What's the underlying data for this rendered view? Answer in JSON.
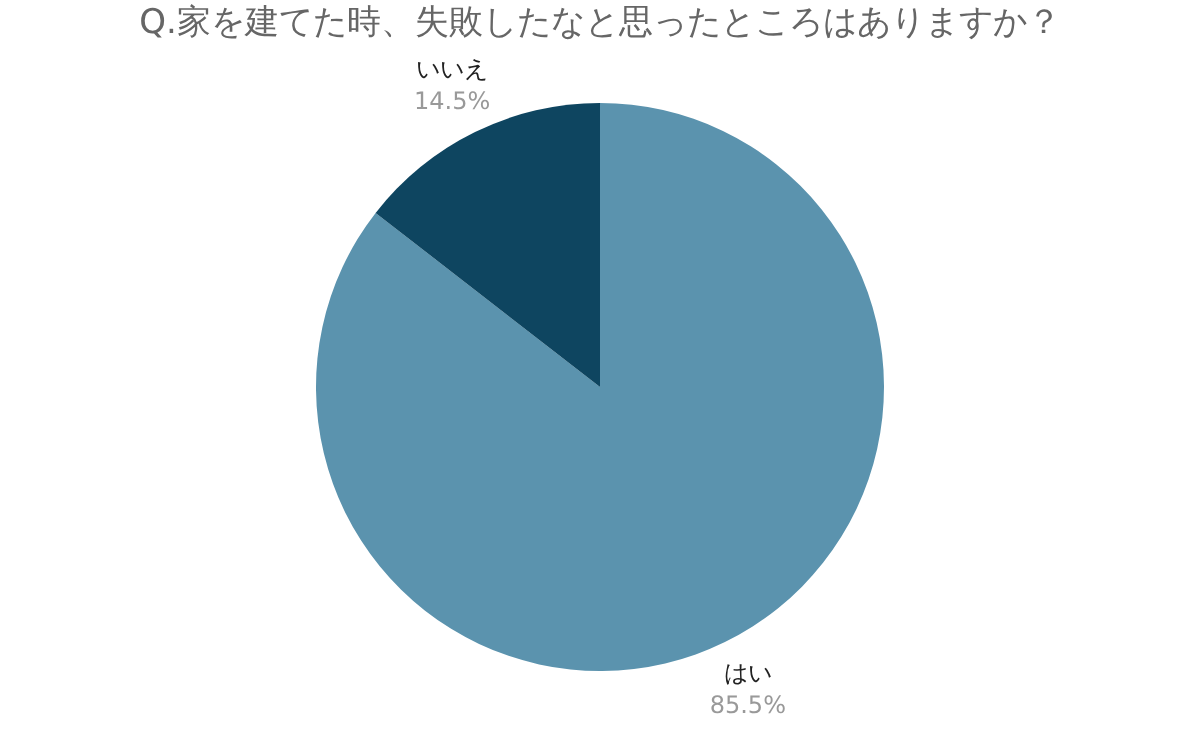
{
  "chart_data": {
    "type": "pie",
    "title": "Q.家を建てた時、失敗したなと思ったところはありますか？",
    "categories": [
      "はい",
      "いいえ"
    ],
    "values": [
      85.5,
      14.5
    ],
    "colors": [
      "#5b93ae",
      "#0e4560"
    ],
    "value_labels": [
      "85.5%",
      "14.5%"
    ],
    "legend": false
  }
}
